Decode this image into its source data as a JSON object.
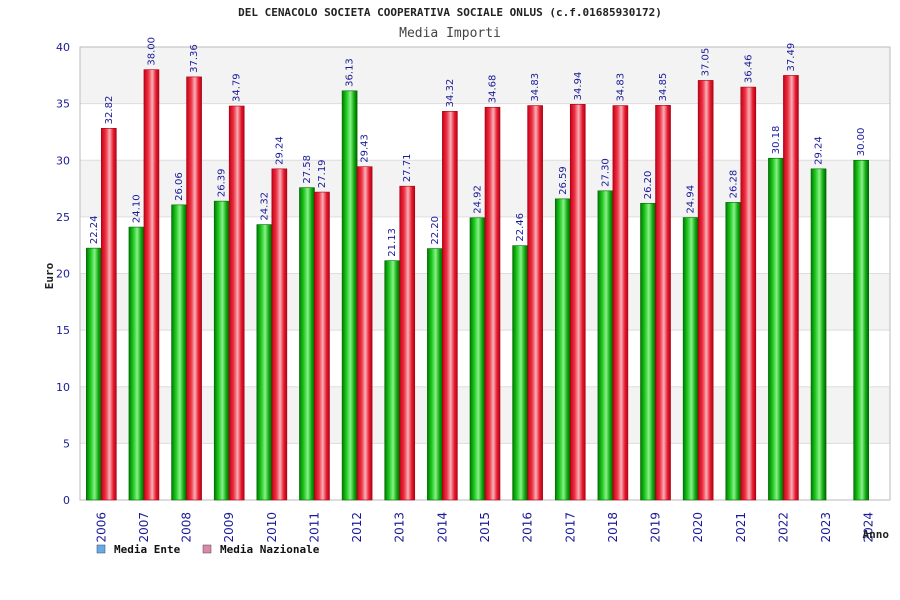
{
  "chart_data": {
    "type": "bar",
    "title": "DEL CENACOLO SOCIETA COOPERATIVA SOCIALE ONLUS (c.f.01685930172)",
    "subtitle": "Media Importi",
    "xlabel": "Anno",
    "ylabel": "Euro",
    "ylim": [
      0,
      40
    ],
    "yticks": [
      0,
      5,
      10,
      15,
      20,
      25,
      30,
      35,
      40
    ],
    "grid": true,
    "legend_position": "bottom-left",
    "categories": [
      "2006",
      "2007",
      "2008",
      "2009",
      "2010",
      "2011",
      "2012",
      "2013",
      "2014",
      "2015",
      "2016",
      "2017",
      "2018",
      "2019",
      "2020",
      "2021",
      "2022",
      "2023",
      "2024"
    ],
    "series": [
      {
        "name": "Media Ente",
        "color": "#00aa00",
        "legend_color": "#66aaee",
        "values": [
          22.24,
          24.1,
          26.06,
          26.39,
          24.32,
          27.58,
          36.13,
          21.13,
          22.2,
          24.92,
          22.46,
          26.59,
          27.3,
          26.2,
          24.94,
          26.28,
          30.18,
          29.24,
          30.0
        ],
        "labels": [
          "22.24",
          "24.10",
          "26.06",
          "26.39",
          "24.32",
          "27.58",
          "36.13",
          "21.13",
          "22.20",
          "24.92",
          "22.46",
          "26.59",
          "27.30",
          "26.20",
          "24.94",
          "26.28",
          "30.18",
          "29.24",
          "30.00"
        ]
      },
      {
        "name": "Media Nazionale",
        "color": "#ee2233",
        "legend_color": "#dd88aa",
        "values": [
          32.82,
          38.0,
          37.36,
          34.79,
          29.24,
          27.19,
          29.43,
          27.71,
          34.32,
          34.68,
          34.83,
          34.94,
          34.83,
          34.85,
          37.05,
          36.46,
          37.49,
          null,
          null
        ],
        "labels": [
          "32.82",
          "38.00",
          "37.36",
          "34.79",
          "29.24",
          "27.19",
          "29.43",
          "27.71",
          "34.32",
          "34.68",
          "34.83",
          "34.94",
          "34.83",
          "34.85",
          "37.05",
          "36.46",
          "37.49",
          null,
          null
        ]
      }
    ]
  }
}
